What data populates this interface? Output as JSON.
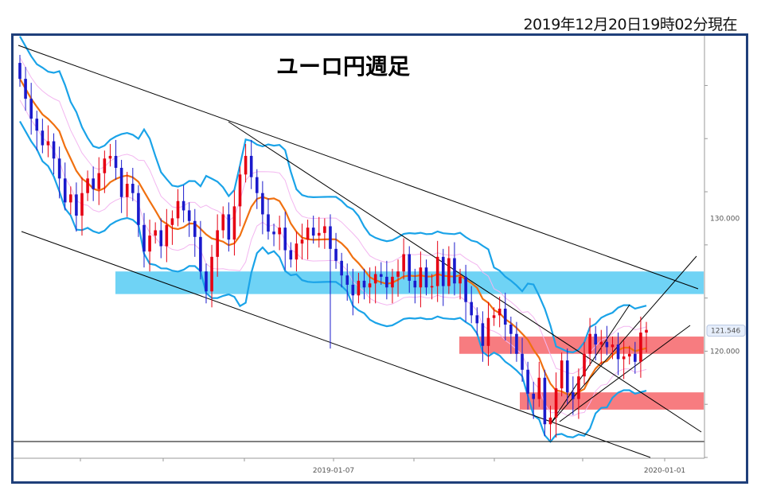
{
  "timestamp": "2019年12月20日19時02分現在",
  "chart_data": {
    "type": "candlestick",
    "title": "ユーロ円週足",
    "x_ticks": [
      "2019-01-07",
      "2020-01-01"
    ],
    "y_ticks": [
      130.0,
      120.0
    ],
    "y_tick_labels": [
      "130.000",
      "120.000"
    ],
    "current_price": 121.546,
    "current_price_label": "121.546",
    "ylim": [
      112.0,
      143.5
    ],
    "colors": {
      "up": "#e60012",
      "down": "#1a1acc",
      "bollinger": "#1aa3e8",
      "ma": "#f07010",
      "sigma1": "#f3b6f0",
      "zone_blue": "#6fd3f5",
      "zone_red": "#f77c80",
      "trendline": "#000000",
      "frame": "#1f3f7a"
    },
    "zones": [
      {
        "color": "blue",
        "from": 124.3,
        "to": 126.0
      },
      {
        "color": "red",
        "from": 119.8,
        "to": 121.1
      },
      {
        "color": "red",
        "from": 115.6,
        "to": 116.9
      }
    ],
    "closes": [
      140.5,
      139.0,
      137.5,
      136.6,
      135.5,
      135.8,
      134.5,
      133.0,
      131.2,
      131.8,
      130.2,
      131.9,
      133.0,
      132.2,
      133.4,
      134.5,
      134.7,
      133.8,
      131.6,
      132.6,
      131.9,
      129.5,
      127.5,
      128.7,
      129.1,
      127.9,
      129.5,
      130.0,
      131.3,
      130.6,
      129.8,
      128.6,
      126.0,
      124.5,
      127.1,
      129.1,
      130.3,
      128.4,
      130.9,
      133.3,
      134.7,
      133.1,
      131.9,
      130.3,
      129.0,
      128.8,
      129.3,
      127.6,
      126.9,
      128.1,
      128.4,
      129.3,
      128.7,
      128.9,
      129.4,
      127.7,
      126.8,
      125.7,
      125.0,
      124.2,
      125.3,
      124.8,
      125.1,
      125.8,
      125.6,
      124.8,
      125.6,
      126.0,
      127.3,
      125.3,
      124.8,
      126.3,
      124.8,
      124.9,
      127.1,
      124.9,
      127.0,
      125.1,
      125.6,
      123.7,
      122.7,
      122.1,
      120.4,
      122.5,
      122.7,
      123.2,
      122.0,
      121.3,
      119.8,
      118.6,
      116.8,
      116.4,
      118.0,
      114.5,
      115.0,
      117.2,
      119.3,
      116.9,
      116.4,
      118.1,
      119.8,
      121.3,
      120.5,
      120.7,
      120.3,
      120.5,
      119.4,
      119.6,
      119.8,
      119.2,
      121.4,
      121.6
    ]
  }
}
